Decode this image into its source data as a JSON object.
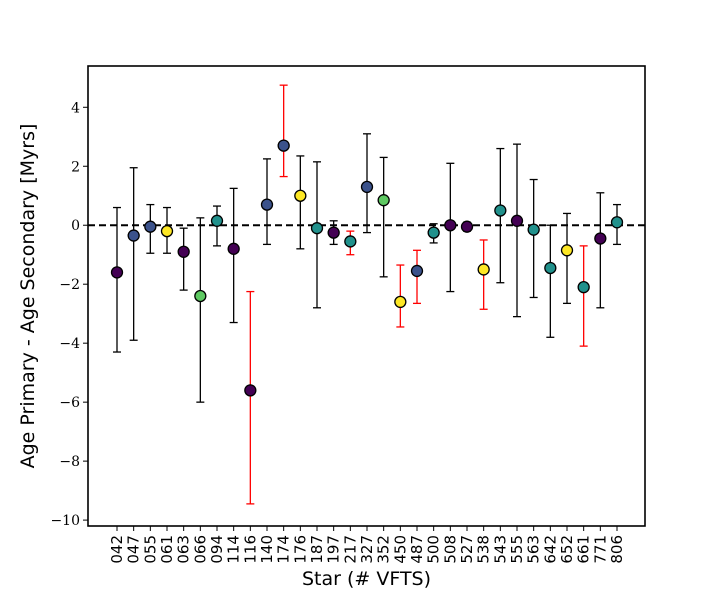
{
  "chart_data": {
    "type": "scatter",
    "title": "",
    "xlabel": "Star (# VFTS)",
    "ylabel": "Age Primary - Age Secondary [Myrs]",
    "ylim": [
      -10.2,
      5.4
    ],
    "yticks": [
      4,
      2,
      0,
      -2,
      -4,
      -6,
      -8,
      -10
    ],
    "ytick_labels": [
      "4",
      "2",
      "0",
      "−2",
      "−4",
      "−6",
      "−8",
      "−10"
    ],
    "reference_line": 0,
    "colors": {
      "purple": "#440154",
      "blue": "#3b528b",
      "teal": "#21918c",
      "green": "#5ec962",
      "yellow": "#fde725",
      "errbar_black": "#000000",
      "errbar_red": "#ff0000"
    },
    "points": [
      {
        "star": "042",
        "y": -1.6,
        "err_low": 2.7,
        "err_high": 2.2,
        "color": "purple",
        "err_color": "errbar_black"
      },
      {
        "star": "047",
        "y": -0.35,
        "err_low": 3.55,
        "err_high": 2.3,
        "color": "blue",
        "err_color": "errbar_black"
      },
      {
        "star": "055",
        "y": -0.05,
        "err_low": 0.9,
        "err_high": 0.75,
        "color": "blue",
        "err_color": "errbar_black"
      },
      {
        "star": "061",
        "y": -0.2,
        "err_low": 0.75,
        "err_high": 0.8,
        "color": "yellow",
        "err_color": "errbar_black"
      },
      {
        "star": "063",
        "y": -0.9,
        "err_low": 1.3,
        "err_high": 0.8,
        "color": "purple",
        "err_color": "errbar_black"
      },
      {
        "star": "066",
        "y": -2.4,
        "err_low": 3.6,
        "err_high": 2.65,
        "color": "green",
        "err_color": "errbar_black"
      },
      {
        "star": "094",
        "y": 0.15,
        "err_low": 0.85,
        "err_high": 0.5,
        "color": "teal",
        "err_color": "errbar_black"
      },
      {
        "star": "114",
        "y": -0.8,
        "err_low": 2.5,
        "err_high": 2.05,
        "color": "purple",
        "err_color": "errbar_black"
      },
      {
        "star": "116",
        "y": -5.6,
        "err_low": 3.85,
        "err_high": 3.35,
        "color": "purple",
        "err_color": "errbar_red"
      },
      {
        "star": "140",
        "y": 0.7,
        "err_low": 1.35,
        "err_high": 1.55,
        "color": "blue",
        "err_color": "errbar_black"
      },
      {
        "star": "174",
        "y": 2.7,
        "err_low": 1.05,
        "err_high": 2.05,
        "color": "blue",
        "err_color": "errbar_red"
      },
      {
        "star": "176",
        "y": 1.0,
        "err_low": 1.8,
        "err_high": 1.35,
        "color": "yellow",
        "err_color": "errbar_black"
      },
      {
        "star": "187",
        "y": -0.1,
        "err_low": 2.7,
        "err_high": 2.25,
        "color": "teal",
        "err_color": "errbar_black"
      },
      {
        "star": "197",
        "y": -0.25,
        "err_low": 0.4,
        "err_high": 0.4,
        "color": "purple",
        "err_color": "errbar_black"
      },
      {
        "star": "217",
        "y": -0.55,
        "err_low": 0.45,
        "err_high": 0.35,
        "color": "teal",
        "err_color": "errbar_red"
      },
      {
        "star": "327",
        "y": 1.3,
        "err_low": 1.55,
        "err_high": 1.8,
        "color": "blue",
        "err_color": "errbar_black"
      },
      {
        "star": "352",
        "y": 0.85,
        "err_low": 2.6,
        "err_high": 1.45,
        "color": "green",
        "err_color": "errbar_black"
      },
      {
        "star": "450",
        "y": -2.6,
        "err_low": 0.85,
        "err_high": 1.25,
        "color": "yellow",
        "err_color": "errbar_red"
      },
      {
        "star": "487",
        "y": -1.55,
        "err_low": 1.1,
        "err_high": 0.7,
        "color": "blue",
        "err_color": "errbar_red"
      },
      {
        "star": "500",
        "y": -0.25,
        "err_low": 0.35,
        "err_high": 0.3,
        "color": "teal",
        "err_color": "errbar_black"
      },
      {
        "star": "508",
        "y": 0.0,
        "err_low": 2.25,
        "err_high": 2.1,
        "color": "purple",
        "err_color": "errbar_black"
      },
      {
        "star": "527",
        "y": -0.05,
        "err_low": 0.15,
        "err_high": 0.15,
        "color": "purple",
        "err_color": "errbar_black"
      },
      {
        "star": "538",
        "y": -1.5,
        "err_low": 1.35,
        "err_high": 1.0,
        "color": "yellow",
        "err_color": "errbar_red"
      },
      {
        "star": "543",
        "y": 0.5,
        "err_low": 2.45,
        "err_high": 2.1,
        "color": "teal",
        "err_color": "errbar_black"
      },
      {
        "star": "555",
        "y": 0.15,
        "err_low": 3.25,
        "err_high": 2.6,
        "color": "purple",
        "err_color": "errbar_black"
      },
      {
        "star": "563",
        "y": -0.15,
        "err_low": 2.3,
        "err_high": 1.7,
        "color": "teal",
        "err_color": "errbar_black"
      },
      {
        "star": "642",
        "y": -1.45,
        "err_low": 2.35,
        "err_high": 1.45,
        "color": "teal",
        "err_color": "errbar_black"
      },
      {
        "star": "652",
        "y": -0.85,
        "err_low": 1.8,
        "err_high": 1.25,
        "color": "yellow",
        "err_color": "errbar_black"
      },
      {
        "star": "661",
        "y": -2.1,
        "err_low": 2.0,
        "err_high": 1.4,
        "color": "teal",
        "err_color": "errbar_red"
      },
      {
        "star": "771",
        "y": -0.45,
        "err_low": 2.35,
        "err_high": 1.55,
        "color": "purple",
        "err_color": "errbar_black"
      },
      {
        "star": "806",
        "y": 0.1,
        "err_low": 0.75,
        "err_high": 0.6,
        "color": "teal",
        "err_color": "errbar_black"
      }
    ]
  }
}
